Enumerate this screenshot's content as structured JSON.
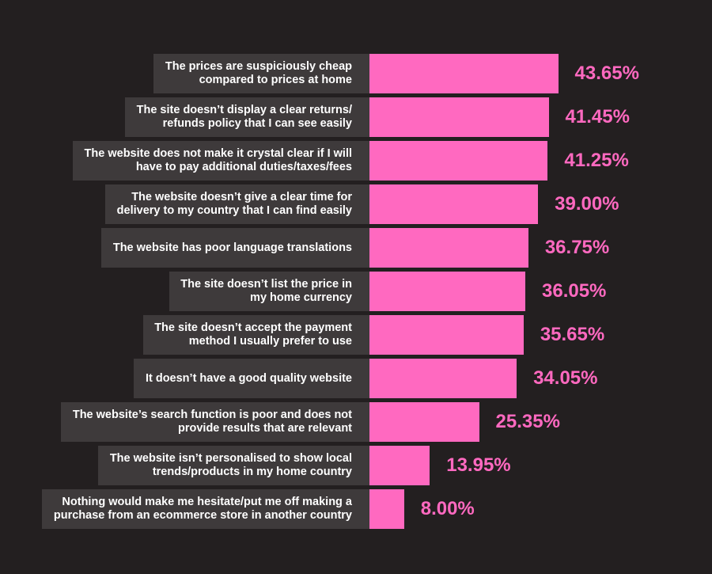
{
  "chart_data": {
    "type": "bar",
    "orientation": "horizontal",
    "categories": [
      "The prices are suspiciously cheap\ncompared to prices at home",
      "The site doesn’t display a clear returns/\nrefunds policy that I can see easily",
      "The website does not make it crystal clear if I will\nhave to pay additional duties/taxes/fees",
      "The website doesn’t give a clear time for\ndelivery to my country that I can find easily",
      "The website has poor language translations",
      "The site doesn’t list the price in\nmy home currency",
      "The site doesn’t accept the payment\nmethod I usually prefer to use",
      "It doesn’t have a good quality website",
      "The website’s search function is poor and does not\nprovide results that are relevant",
      "The website isn’t personalised to show local\ntrends/products in my home country",
      "Nothing would make me hesitate/put me off making a\npurchase from an ecommerce store in another country"
    ],
    "values": [
      43.65,
      41.45,
      41.25,
      39.0,
      36.75,
      36.05,
      35.65,
      34.05,
      25.35,
      13.95,
      8.0
    ],
    "value_labels": [
      "43.65%",
      "41.45%",
      "41.25%",
      "39.00%",
      "36.75%",
      "36.05%",
      "35.65%",
      "34.05%",
      "25.35%",
      "13.95%",
      "8.00%"
    ],
    "title": "",
    "xlabel": "",
    "ylabel": "",
    "grid": false,
    "legend": "none"
  },
  "colors": {
    "background": "#231f20",
    "label_box": "#3e3a3b",
    "bar": "#ff69c0",
    "value_text": "#ff69c0",
    "label_text": "#ffffff"
  }
}
